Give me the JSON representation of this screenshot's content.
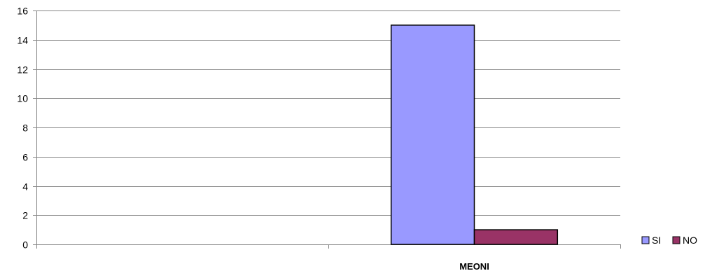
{
  "chart_data": {
    "type": "bar",
    "title": "",
    "xlabel": "",
    "ylabel": "",
    "categories": [
      "",
      "MEONI"
    ],
    "series": [
      {
        "name": "SI",
        "color": "#9999ff",
        "values": [
          0,
          15
        ]
      },
      {
        "name": "NO",
        "color": "#993366",
        "values": [
          0,
          1
        ]
      }
    ],
    "ylim": [
      0,
      16
    ],
    "yticks": [
      0,
      2,
      4,
      6,
      8,
      10,
      12,
      14,
      16
    ],
    "grid": true,
    "legend": "right"
  }
}
